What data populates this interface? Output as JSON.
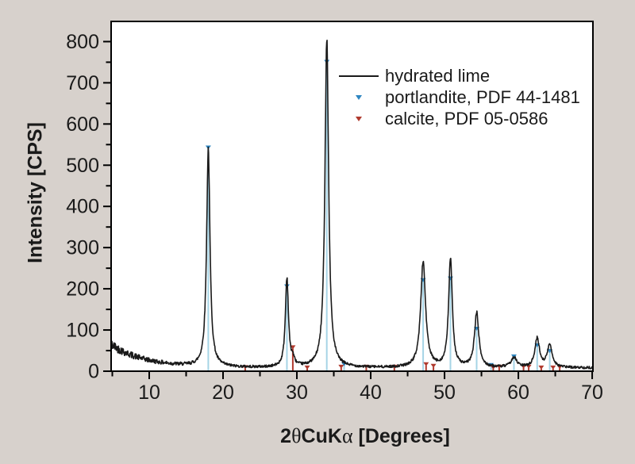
{
  "page": {
    "background_color": "#d7d1cc"
  },
  "chart_data": {
    "type": "line",
    "subtype": "xrd-diffractogram",
    "title": "",
    "ylabel": "Intensity [CPS]",
    "xlabel": {
      "pre": "2",
      "theta": "θ",
      "mid": "CuK",
      "alpha": "α",
      "post": " [Degrees]"
    },
    "x_range": [
      4.84,
      70.1
    ],
    "y_range": [
      0,
      849
    ],
    "x_major_ticks": [
      10,
      20,
      30,
      40,
      50,
      60,
      70
    ],
    "x_minor_ticks": [
      5,
      15,
      25,
      35,
      45,
      55,
      65
    ],
    "y_major_ticks": [
      0,
      100,
      200,
      300,
      400,
      500,
      600,
      700,
      800
    ],
    "y_minor_ticks": [
      50,
      150,
      250,
      350,
      450,
      550,
      650,
      750
    ],
    "grid": false,
    "legend_position": "upper-right-inside",
    "colors": {
      "curve": "#1a1a1a",
      "portlandite_stick": "#a6d4e6",
      "portlandite_marker": "#2e86c1",
      "calcite": "#b03a2e",
      "axis": "#000000",
      "plot_bg": "#ffffff"
    },
    "series": [
      {
        "name": "hydrated lime",
        "kind": "diffractogram-curve",
        "background": {
          "base_cps": 8,
          "amplitude_cps": 55,
          "decay_deg": 4.5,
          "start_deg": 5
        },
        "noise_cps": 3,
        "peaks": [
          {
            "two_theta": 18.0,
            "intensity_cps": 540,
            "fwhm": 0.55
          },
          {
            "two_theta": 28.65,
            "intensity_cps": 225,
            "fwhm": 0.5
          },
          {
            "two_theta": 29.45,
            "intensity_cps": 24,
            "fwhm": 0.5
          },
          {
            "two_theta": 34.05,
            "intensity_cps": 810,
            "fwhm": 0.6
          },
          {
            "two_theta": 47.1,
            "intensity_cps": 265,
            "fwhm": 0.8
          },
          {
            "two_theta": 50.8,
            "intensity_cps": 272,
            "fwhm": 0.6
          },
          {
            "two_theta": 54.35,
            "intensity_cps": 140,
            "fwhm": 0.7
          },
          {
            "two_theta": 59.4,
            "intensity_cps": 32,
            "fwhm": 0.9
          },
          {
            "two_theta": 62.55,
            "intensity_cps": 78,
            "fwhm": 0.75
          },
          {
            "two_theta": 64.25,
            "intensity_cps": 62,
            "fwhm": 0.8
          }
        ]
      },
      {
        "name": "portlandite, PDF 44-1481",
        "kind": "reference-sticks",
        "points": [
          [
            18.0,
            540
          ],
          [
            28.65,
            203
          ],
          [
            34.05,
            748
          ],
          [
            36.4,
            14
          ],
          [
            47.1,
            218
          ],
          [
            50.8,
            222
          ],
          [
            54.35,
            100
          ],
          [
            56.3,
            12
          ],
          [
            59.4,
            33
          ],
          [
            62.55,
            60
          ],
          [
            64.25,
            46
          ]
        ]
      },
      {
        "name": "calcite, PDF 05-0586",
        "kind": "reference-sticks",
        "points": [
          [
            23.0,
            7
          ],
          [
            29.45,
            55
          ],
          [
            31.4,
            6
          ],
          [
            36.0,
            8
          ],
          [
            39.4,
            8
          ],
          [
            43.2,
            8
          ],
          [
            47.5,
            14
          ],
          [
            48.5,
            10
          ],
          [
            56.6,
            6
          ],
          [
            57.4,
            8
          ],
          [
            60.7,
            8
          ],
          [
            61.4,
            8
          ],
          [
            63.1,
            6
          ],
          [
            64.7,
            6
          ],
          [
            65.6,
            7
          ]
        ]
      }
    ]
  }
}
